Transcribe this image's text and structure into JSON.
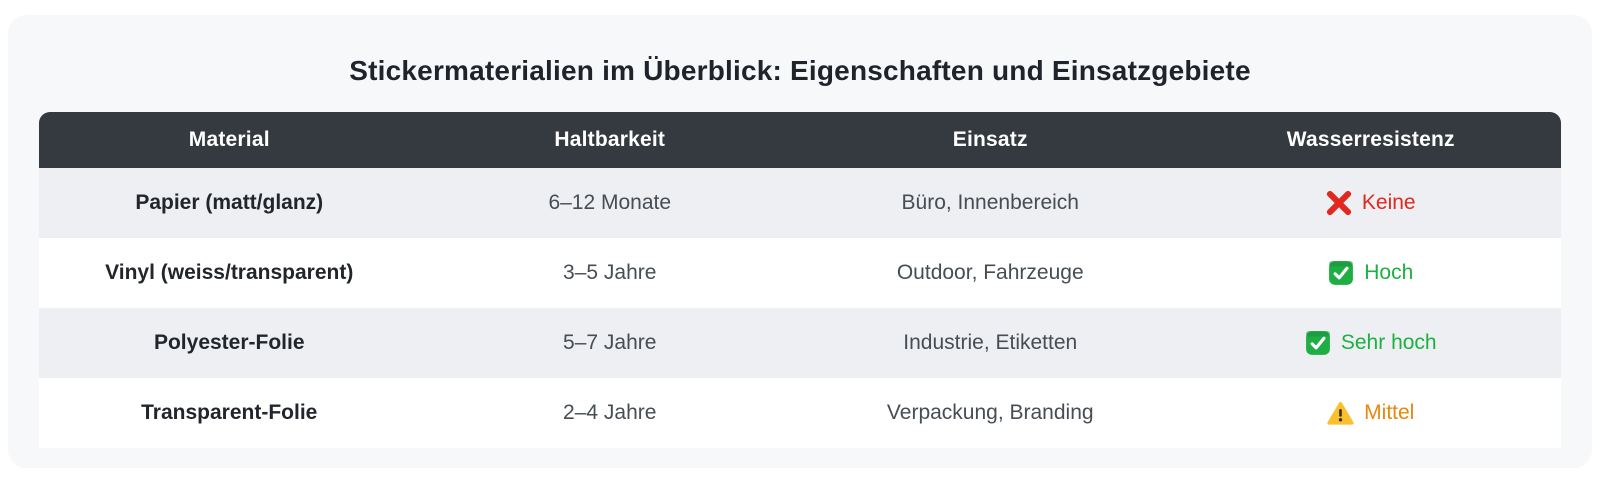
{
  "title": "Stickermaterialien im Überblick: Eigenschaften und Einsatzgebiete",
  "table": {
    "columns": [
      "Material",
      "Haltbarkeit",
      "Einsatz",
      "Wasserresistenz"
    ],
    "rows": [
      {
        "material": "Papier (matt/glanz)",
        "durability": "6–12 Monate",
        "usage": "Büro, Innenbereich",
        "resistance": {
          "icon": "cross-mark-icon",
          "label": "Keine",
          "color": "#e0281e"
        }
      },
      {
        "material": "Vinyl (weiss/transparent)",
        "durability": "3–5 Jahre",
        "usage": "Outdoor, Fahrzeuge",
        "resistance": {
          "icon": "check-mark-icon",
          "label": "Hoch",
          "color": "#1cb140"
        }
      },
      {
        "material": "Polyester-Folie",
        "durability": "5–7 Jahre",
        "usage": "Industrie, Etiketten",
        "resistance": {
          "icon": "check-mark-icon",
          "label": "Sehr hoch",
          "color": "#1cb140"
        }
      },
      {
        "material": "Transparent-Folie",
        "durability": "2–4 Jahre",
        "usage": "Verpackung, Branding",
        "resistance": {
          "icon": "warning-icon",
          "label": "Mittel",
          "color": "#e8870e"
        }
      }
    ]
  },
  "colors": {
    "card_bg": "#f7f8fa",
    "header_bg": "#343a40",
    "header_text": "#ffffff",
    "row_alt_bg": "#edeff2",
    "row_bg": "#ffffff",
    "cross_red": "#e0281e",
    "check_green": "#1fae43",
    "warning_yellow": "#fbc02d",
    "warning_glyph": "#33302a"
  }
}
